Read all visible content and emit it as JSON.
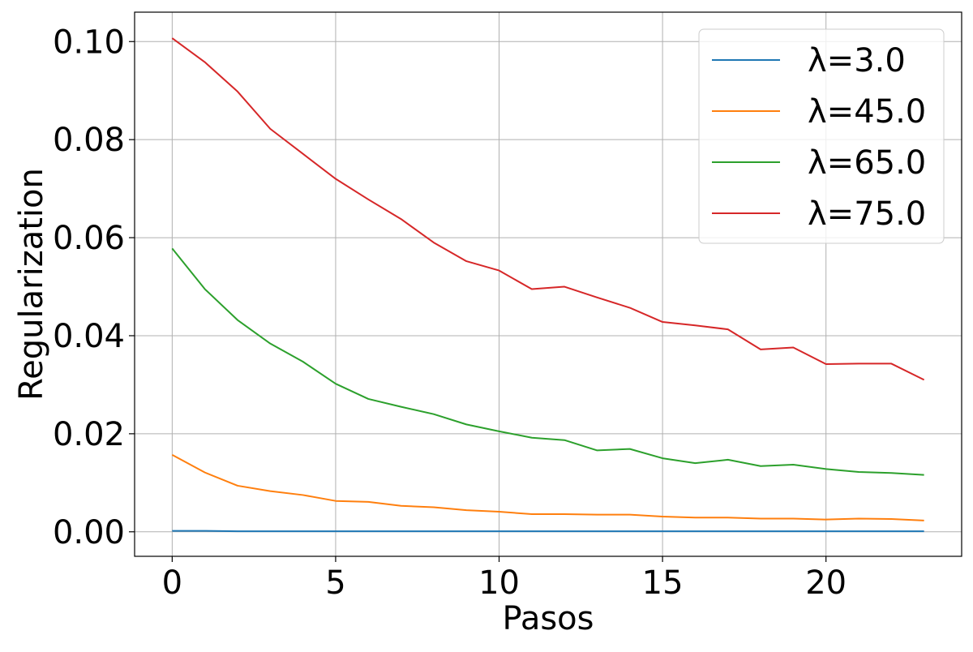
{
  "chart_data": {
    "type": "line",
    "title": "",
    "xlabel": "Pasos",
    "ylabel": "Regularization",
    "xlim": [
      -1.15,
      24.15
    ],
    "ylim": [
      -0.005,
      0.106
    ],
    "x_ticks": [
      0,
      5,
      10,
      15,
      20
    ],
    "x_tick_labels": [
      "0",
      "5",
      "10",
      "15",
      "20"
    ],
    "y_ticks": [
      0,
      0.02,
      0.04,
      0.06,
      0.08,
      0.1
    ],
    "y_tick_labels": [
      "0.00",
      "0.02",
      "0.04",
      "0.06",
      "0.08",
      "0.10"
    ],
    "grid": true,
    "legend_position": "top-right",
    "x": [
      0,
      1,
      2,
      3,
      4,
      5,
      6,
      7,
      8,
      9,
      10,
      11,
      12,
      13,
      14,
      15,
      16,
      17,
      18,
      19,
      20,
      21,
      22,
      23
    ],
    "series": [
      {
        "name": "λ=3.0",
        "color": "#1f77b4",
        "values": [
          0.0002,
          0.0002,
          0.0001,
          0.0001,
          0.0001,
          0.0001,
          0.0001,
          0.0001,
          0.0001,
          0.0001,
          0.0001,
          0.0001,
          0.0001,
          0.0001,
          0.0001,
          0.0001,
          0.0001,
          0.0001,
          0.0001,
          0.0001,
          0.0001,
          0.0001,
          0.0001,
          0.0001
        ]
      },
      {
        "name": "λ=45.0",
        "color": "#ff7f0e",
        "values": [
          0.0157,
          0.0121,
          0.0094,
          0.0083,
          0.0075,
          0.0063,
          0.0061,
          0.0053,
          0.005,
          0.0044,
          0.0041,
          0.0036,
          0.0036,
          0.0035,
          0.0035,
          0.0031,
          0.0029,
          0.0029,
          0.0027,
          0.0027,
          0.0025,
          0.0027,
          0.0026,
          0.0023
        ]
      },
      {
        "name": "λ=65.0",
        "color": "#2ca02c",
        "values": [
          0.0578,
          0.0495,
          0.0432,
          0.0384,
          0.0347,
          0.0302,
          0.0271,
          0.0255,
          0.024,
          0.0219,
          0.0205,
          0.0192,
          0.0187,
          0.0166,
          0.0169,
          0.015,
          0.014,
          0.0147,
          0.0134,
          0.0137,
          0.0128,
          0.0122,
          0.012,
          0.0116
        ]
      },
      {
        "name": "λ=75.0",
        "color": "#d62728",
        "values": [
          0.1007,
          0.0958,
          0.0898,
          0.0822,
          0.0771,
          0.072,
          0.0678,
          0.0638,
          0.059,
          0.0552,
          0.0533,
          0.0495,
          0.05,
          0.0478,
          0.0457,
          0.0428,
          0.0421,
          0.0413,
          0.0372,
          0.0376,
          0.0342,
          0.0343,
          0.0343,
          0.031
        ]
      }
    ]
  }
}
